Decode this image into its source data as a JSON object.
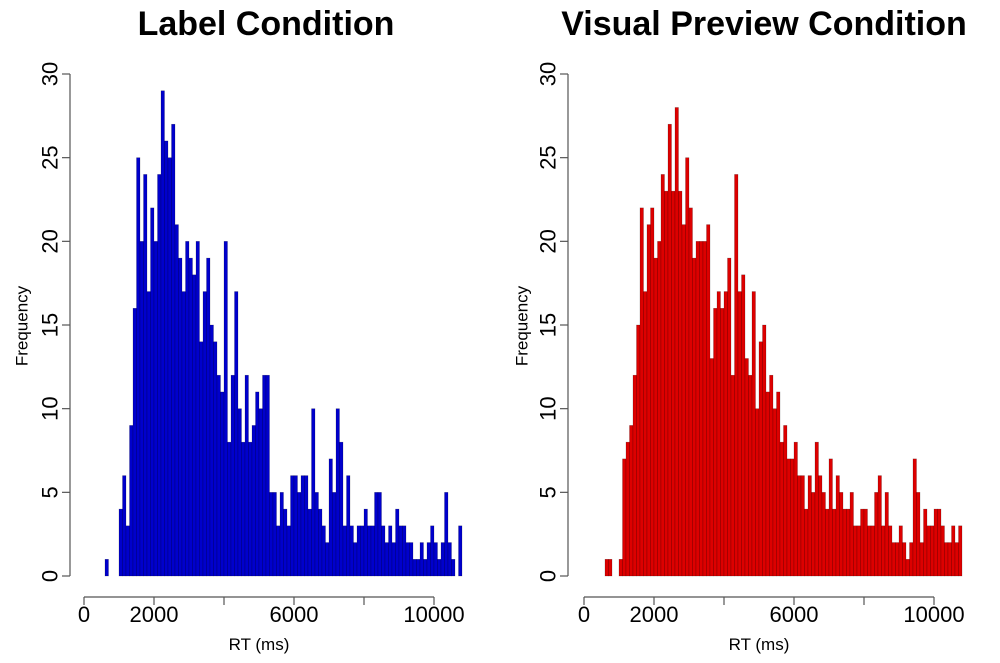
{
  "chart_data": [
    {
      "type": "bar",
      "title": "Label Condition",
      "xlabel": "RT (ms)",
      "ylabel": "Frequency",
      "xlim": [
        0,
        10000
      ],
      "ylim": [
        0,
        30
      ],
      "xticks": [
        0,
        2000,
        6000,
        10000
      ],
      "xtick_labels": [
        "0",
        "2000",
        "6000",
        "10000"
      ],
      "yticks": [
        0,
        5,
        10,
        15,
        20,
        25,
        30
      ],
      "ytick_labels": [
        "0",
        "5",
        "10",
        "15",
        "20",
        "25",
        "30"
      ],
      "bin_start": 600,
      "bin_width": 100,
      "values": [
        1,
        0,
        0,
        0,
        4,
        6,
        3,
        9,
        16,
        25,
        20,
        24,
        17,
        22,
        20,
        24,
        29,
        26,
        25,
        27,
        21,
        19,
        17,
        20,
        19,
        18,
        20,
        14,
        17,
        19,
        15,
        14,
        12,
        11,
        20,
        8,
        12,
        17,
        10,
        8,
        12,
        8,
        9,
        11,
        10,
        12,
        12,
        5,
        5,
        3,
        5,
        4,
        3,
        6,
        6,
        5,
        6,
        6,
        4,
        10,
        5,
        4,
        3,
        2,
        7,
        5,
        10,
        8,
        3,
        6,
        3,
        2,
        3,
        3,
        4,
        3,
        3,
        5,
        5,
        3,
        2,
        3,
        2,
        4,
        3,
        3,
        2,
        2,
        1,
        1,
        2,
        1,
        2,
        3,
        2,
        1,
        2,
        5,
        2,
        1,
        0,
        3
      ],
      "color": "#0000cc"
    },
    {
      "type": "bar",
      "title": "Visual Preview Condition",
      "xlabel": "RT (ms)",
      "ylabel": "Frequency",
      "xlim": [
        0,
        10000
      ],
      "ylim": [
        0,
        30
      ],
      "xticks": [
        0,
        2000,
        6000,
        10000
      ],
      "xtick_labels": [
        "0",
        "2000",
        "6000",
        "10000"
      ],
      "yticks": [
        0,
        5,
        10,
        15,
        20,
        25,
        30
      ],
      "ytick_labels": [
        "0",
        "5",
        "10",
        "15",
        "20",
        "25",
        "30"
      ],
      "bin_start": 600,
      "bin_width": 100,
      "values": [
        1,
        1,
        0,
        0,
        1,
        7,
        8,
        9,
        12,
        15,
        22,
        17,
        21,
        22,
        19,
        20,
        24,
        23,
        27,
        23,
        28,
        23,
        21,
        25,
        22,
        19,
        20,
        20,
        20,
        21,
        13,
        16,
        17,
        16,
        17,
        19,
        12,
        24,
        17,
        18,
        13,
        12,
        17,
        10,
        14,
        15,
        11,
        12,
        10,
        11,
        8,
        9,
        7,
        7,
        8,
        6,
        6,
        4,
        6,
        5,
        8,
        6,
        5,
        4,
        7,
        4,
        6,
        5,
        4,
        4,
        5,
        3,
        3,
        4,
        4,
        3,
        3,
        5,
        6,
        3,
        5,
        3,
        2,
        2,
        3,
        2,
        1,
        2,
        7,
        5,
        2,
        4,
        3,
        3,
        4,
        4,
        3,
        2,
        2,
        3,
        2,
        3
      ],
      "color": "#dd0000"
    }
  ]
}
